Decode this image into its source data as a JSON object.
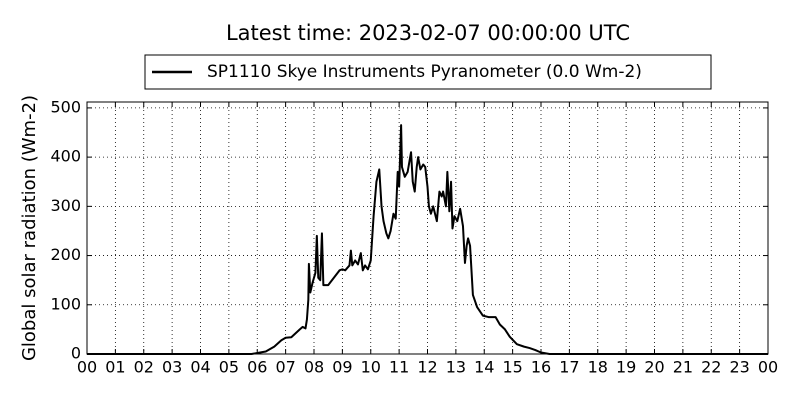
{
  "chart_data": {
    "type": "line",
    "title": "Latest time: 2023-02-07 00:00:00 UTC",
    "y_label": "Global solar radiation (Wm-2)",
    "x": [
      0,
      5.8,
      6.0,
      6.3,
      6.6,
      6.85,
      7.0,
      7.2,
      7.5,
      7.6,
      7.7,
      7.75,
      7.8,
      7.82,
      7.87,
      7.95,
      8.05,
      8.1,
      8.15,
      8.22,
      8.28,
      8.33,
      8.5,
      8.7,
      8.9,
      9.0,
      9.1,
      9.25,
      9.3,
      9.35,
      9.45,
      9.55,
      9.65,
      9.72,
      9.8,
      9.9,
      10.0,
      10.1,
      10.2,
      10.3,
      10.38,
      10.45,
      10.55,
      10.62,
      10.7,
      10.8,
      10.88,
      10.95,
      11.0,
      11.07,
      11.1,
      11.2,
      11.3,
      11.42,
      11.48,
      11.55,
      11.62,
      11.67,
      11.75,
      11.85,
      11.92,
      12.0,
      12.05,
      12.12,
      12.2,
      12.33,
      12.42,
      12.5,
      12.55,
      12.65,
      12.7,
      12.77,
      12.83,
      12.88,
      12.95,
      13.05,
      13.15,
      13.25,
      13.32,
      13.38,
      13.43,
      13.5,
      13.6,
      13.75,
      13.95,
      14.15,
      14.4,
      14.55,
      14.73,
      14.9,
      15.15,
      15.4,
      15.6,
      15.8,
      16.0,
      16.3,
      24
    ],
    "series": [
      {
        "name": "SP1110 Skye Instruments Pyranometer (0.0 Wm-2)",
        "color": "#000000",
        "values": [
          0,
          0,
          2,
          5,
          15,
          28,
          33,
          34,
          50,
          55,
          52,
          70,
          110,
          183,
          125,
          145,
          165,
          240,
          155,
          150,
          245,
          140,
          140,
          155,
          170,
          172,
          170,
          180,
          210,
          180,
          190,
          182,
          205,
          170,
          180,
          172,
          190,
          280,
          350,
          375,
          300,
          270,
          245,
          235,
          250,
          285,
          275,
          370,
          340,
          465,
          380,
          360,
          370,
          410,
          350,
          330,
          380,
          400,
          375,
          385,
          380,
          340,
          300,
          285,
          300,
          270,
          330,
          320,
          330,
          300,
          370,
          290,
          350,
          255,
          280,
          270,
          295,
          260,
          185,
          220,
          235,
          220,
          120,
          95,
          78,
          75,
          75,
          60,
          50,
          35,
          20,
          15,
          12,
          8,
          3,
          0,
          0
        ]
      }
    ],
    "xlim": [
      0,
      24
    ],
    "xticks": [
      {
        "value": 0,
        "label": "00"
      },
      {
        "value": 1,
        "label": "01"
      },
      {
        "value": 2,
        "label": "02"
      },
      {
        "value": 3,
        "label": "03"
      },
      {
        "value": 4,
        "label": "04"
      },
      {
        "value": 5,
        "label": "05"
      },
      {
        "value": 6,
        "label": "06"
      },
      {
        "value": 7,
        "label": "07"
      },
      {
        "value": 8,
        "label": "08"
      },
      {
        "value": 9,
        "label": "09"
      },
      10,
      11,
      12,
      13,
      14,
      15,
      16,
      17,
      18,
      19,
      20,
      21,
      22,
      23,
      {
        "value": 24,
        "label": "00"
      }
    ],
    "ylim": [
      0,
      512
    ],
    "yticks": [
      0,
      100,
      200,
      300,
      400,
      500
    ],
    "grid": true,
    "legend": "top"
  }
}
